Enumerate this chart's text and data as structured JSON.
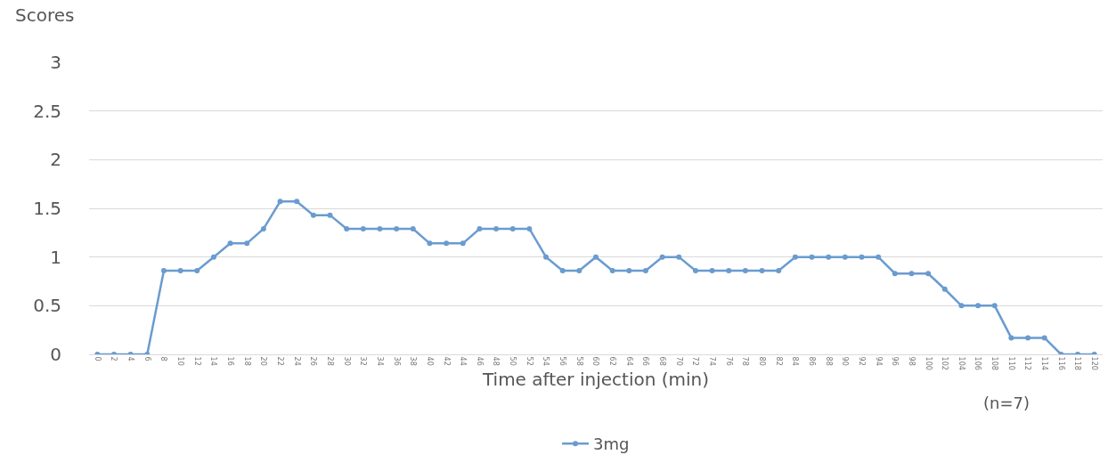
{
  "chart_data": {
    "type": "line",
    "ylabel": "Scores",
    "xlabel": "Time after injection (min)",
    "annotations": [
      "(n=7)"
    ],
    "categories": [
      "0",
      "2",
      "4",
      "6",
      "8",
      "10",
      "12",
      "14",
      "16",
      "18",
      "20",
      "22",
      "24",
      "26",
      "28",
      "30",
      "32",
      "34",
      "36",
      "38",
      "40",
      "42",
      "44",
      "46",
      "48",
      "50",
      "52",
      "54",
      "56",
      "58",
      "60",
      "62",
      "64",
      "66",
      "68",
      "70",
      "72",
      "74",
      "76",
      "78",
      "80",
      "82",
      "84",
      "86",
      "88",
      "90",
      "92",
      "94",
      "96",
      "98",
      "100",
      "102",
      "104",
      "106",
      "108",
      "110",
      "112",
      "114",
      "116",
      "118",
      "120"
    ],
    "series": [
      {
        "name": "3mg",
        "color": "#6a9bd0",
        "values": [
          0,
          0,
          0,
          0,
          0.86,
          0.86,
          0.86,
          1,
          1.14,
          1.14,
          1.29,
          1.57,
          1.57,
          1.43,
          1.43,
          1.29,
          1.29,
          1.29,
          1.29,
          1.29,
          1.14,
          1.14,
          1.14,
          1.29,
          1.29,
          1.29,
          1.29,
          1,
          0.86,
          0.86,
          1,
          0.86,
          0.86,
          0.86,
          1,
          1,
          0.86,
          0.86,
          0.86,
          0.86,
          0.86,
          0.86,
          1,
          1,
          1,
          1,
          1,
          1,
          0.83,
          0.83,
          0.83,
          0.67,
          0.5,
          0.5,
          0.5,
          0.17,
          0.17,
          0.17,
          0,
          0,
          0
        ]
      }
    ],
    "ylim": [
      0,
      3
    ],
    "yticks": [
      0,
      0.5,
      1,
      1.5,
      2,
      2.5,
      3
    ],
    "grid": "y",
    "legend": "bottom",
    "marker": "circle",
    "line_style": "solid"
  }
}
